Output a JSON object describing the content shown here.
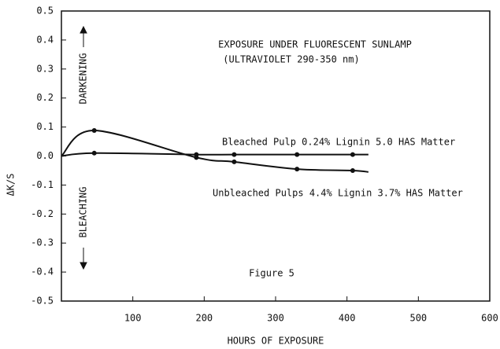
{
  "chart_data": {
    "type": "line",
    "title": "EXPOSURE UNDER FLUORESCENT SUNLAMP",
    "subtitle": "(ULTRAVIOLET 290-350 nm)",
    "figure_label": "Figure 5",
    "x_label": "HOURS OF EXPOSURE",
    "y_label": "ΔK/S",
    "up_annotation": "DARKENING",
    "down_annotation": "BLEACHING",
    "xlim": [
      0,
      600
    ],
    "ylim": [
      -0.5,
      0.5
    ],
    "xticks": [
      100,
      200,
      300,
      400,
      500,
      600
    ],
    "yticks": [
      0.5,
      0.4,
      0.3,
      0.2,
      0.1,
      {
        "value": 0,
        "label": "0.0"
      },
      -0.1,
      -0.2,
      -0.3,
      -0.4,
      -0.5
    ],
    "color": "#111111",
    "series": [
      {
        "name": "Bleached Pulp 0.24% Lignin 5.0 HAS Matter",
        "color": "#111111",
        "x": [
          0,
          46,
          189,
          242,
          330,
          408,
          430
        ],
        "values": [
          0,
          0.01,
          0.005,
          0.005,
          0.005,
          0.005,
          0.005
        ]
      },
      {
        "name": "Unbleached Pulps 4.4% Lignin 3.7% HAS Matter",
        "color": "#111111",
        "x": [
          0,
          46,
          189,
          242,
          330,
          408,
          430
        ],
        "values": [
          0,
          0.088,
          -0.005,
          -0.02,
          -0.045,
          -0.05,
          -0.055
        ]
      }
    ]
  }
}
